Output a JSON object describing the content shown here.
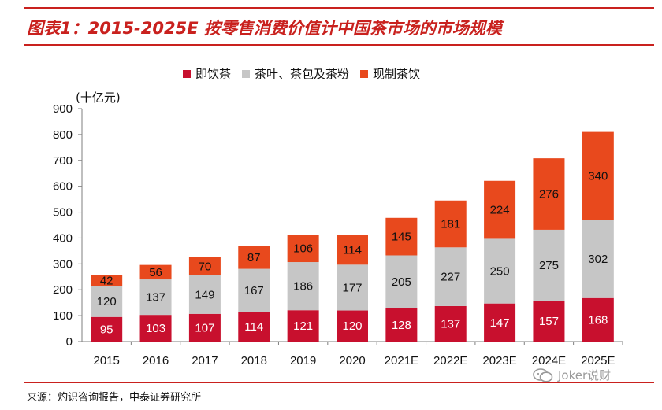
{
  "title": "图表1：2015-2025E 按零售消费价值计中国茶市场的市场规模",
  "source": "来源：灼识咨询报告，中泰证券研究所",
  "watermark": "Joker说财",
  "watermark_icon": "wechat-icon",
  "colors": {
    "accent": "#c9211e",
    "rtd_tea": "#c8102e",
    "tea_leaf": "#c6c6c6",
    "fresh_tea": "#e8491d"
  },
  "chart_data": {
    "type": "bar",
    "stacked": true,
    "unit_label": "(十亿元)",
    "categories": [
      "2015",
      "2016",
      "2017",
      "2018",
      "2019",
      "2020",
      "2021E",
      "2022E",
      "2023E",
      "2024E",
      "2025E"
    ],
    "series": [
      {
        "name": "即饮茶",
        "color": "#c8102e",
        "label_color": "#ffffff",
        "values": [
          95,
          103,
          107,
          114,
          121,
          120,
          128,
          137,
          147,
          157,
          168
        ]
      },
      {
        "name": "茶叶、茶包及茶粉",
        "color": "#c6c6c6",
        "label_color": "#111111",
        "values": [
          120,
          137,
          149,
          167,
          186,
          177,
          205,
          227,
          250,
          275,
          302
        ]
      },
      {
        "name": "现制茶饮",
        "color": "#e8491d",
        "label_color": "#111111",
        "values": [
          42,
          56,
          70,
          87,
          106,
          114,
          145,
          181,
          224,
          276,
          340
        ]
      }
    ],
    "ylim": [
      0,
      900
    ],
    "yticks": [
      0,
      100,
      200,
      300,
      400,
      500,
      600,
      700,
      800,
      900
    ],
    "grid": false,
    "legend_position": "top"
  }
}
